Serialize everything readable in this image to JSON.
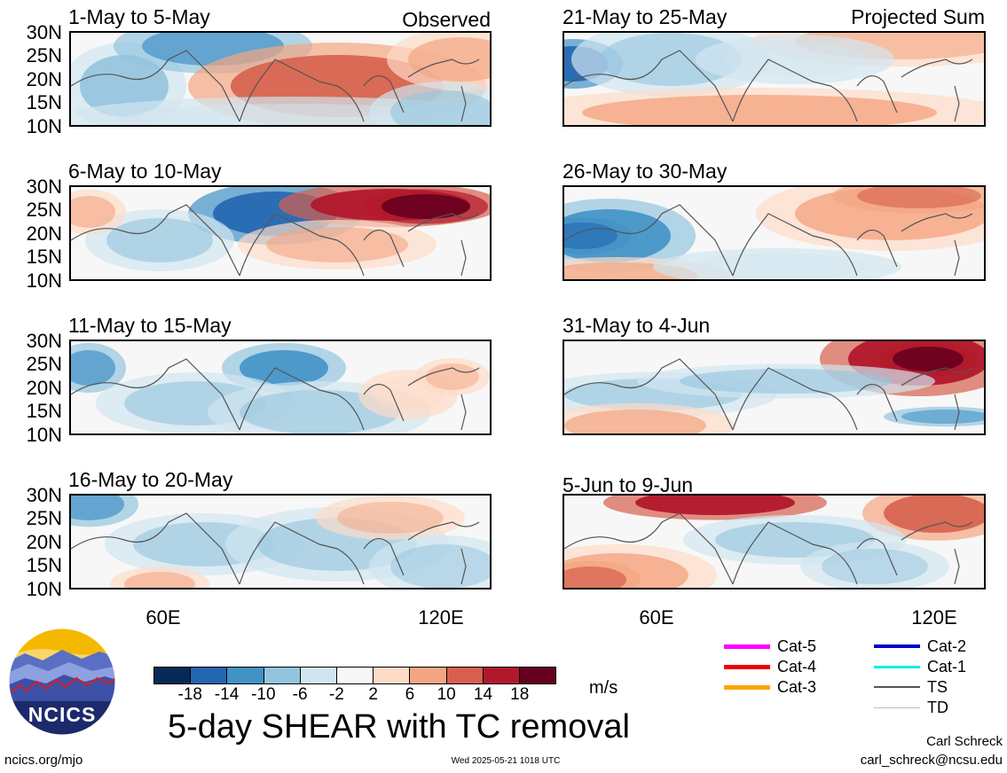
{
  "panels_left": [
    {
      "title": "1-May to 5-May",
      "tag": "Observed"
    },
    {
      "title": "6-May to 10-May",
      "tag": ""
    },
    {
      "title": "11-May to 15-May",
      "tag": ""
    },
    {
      "title": "16-May to 20-May",
      "tag": ""
    }
  ],
  "panels_right": [
    {
      "title": "21-May to 25-May",
      "tag": "Projected Sum"
    },
    {
      "title": "26-May to 30-May",
      "tag": ""
    },
    {
      "title": "31-May to 4-Jun",
      "tag": ""
    },
    {
      "title": "5-Jun to 9-Jun",
      "tag": ""
    }
  ],
  "lat_labels": [
    "30N",
    "25N",
    "20N",
    "15N",
    "10N"
  ],
  "lon_labels": [
    "60E",
    "120E"
  ],
  "colorbar": {
    "colors": [
      "#062a55",
      "#2266b0",
      "#4292c6",
      "#93c4de",
      "#d1e5f0",
      "#f7f7f7",
      "#fddbc7",
      "#f4a582",
      "#d6604d",
      "#b2182b",
      "#67001f"
    ],
    "labels": [
      "-18",
      "-14",
      "-10",
      "-6",
      "-2",
      "2",
      "6",
      "10",
      "14",
      "18"
    ],
    "unit": "m/s"
  },
  "main_title": "5-day SHEAR with TC removal",
  "legend": [
    {
      "label": "Cat-5",
      "color": "#ff00ff"
    },
    {
      "label": "Cat-4",
      "color": "#ee0000"
    },
    {
      "label": "Cat-3",
      "color": "#ffa500"
    },
    {
      "label": "Cat-2",
      "color": "#0000cc"
    },
    {
      "label": "Cat-1",
      "color": "#00eeee"
    },
    {
      "label": "TS",
      "color": "#555555"
    },
    {
      "label": "TD",
      "color": "#bbbbbb"
    }
  ],
  "logo_text": "NCICS",
  "footer": {
    "left": "ncics.org/mjo",
    "center": "Wed 2025-05-21 1018 UTC",
    "author": "Carl Schreck",
    "email": "carl_schreck@ncsu.edu"
  }
}
